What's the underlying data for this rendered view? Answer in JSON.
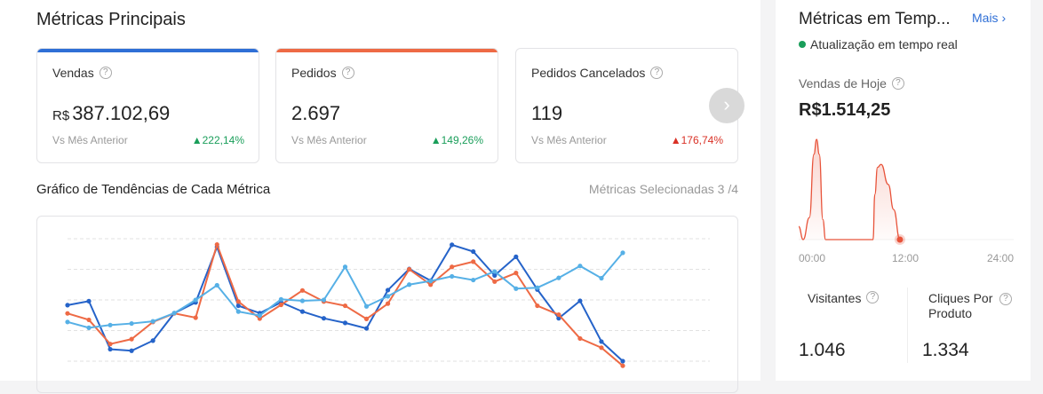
{
  "main": {
    "title": "Métricas Principais",
    "cards": [
      {
        "label": "Vendas",
        "currency": "R$",
        "value": "387.102,69",
        "compare": "Vs Mês Anterior",
        "change": "222,14%",
        "direction": "up",
        "accent": "#2f6fd6"
      },
      {
        "label": "Pedidos",
        "currency": "",
        "value": "2.697",
        "compare": "Vs Mês Anterior",
        "change": "149,26%",
        "direction": "up",
        "accent": "#ee6a45"
      },
      {
        "label": "Pedidos Cancelados",
        "currency": "",
        "value": "119",
        "compare": "Vs Mês Anterior",
        "change": "176,74%",
        "direction": "down",
        "accent": ""
      }
    ],
    "trend_title": "Gráfico de Tendências de Cada Métrica",
    "selected_metrics": "Métricas Selecionadas 3 /4"
  },
  "chart_data": [
    {
      "type": "line",
      "ylim": [
        0,
        4
      ],
      "grid": true,
      "series": [
        {
          "color": "#2563c9",
          "values": [
            1.83,
            1.96,
            0.39,
            0.34,
            0.67,
            1.57,
            1.92,
            3.73,
            1.81,
            1.57,
            1.92,
            1.62,
            1.4,
            1.25,
            1.07,
            2.32,
            3.01,
            2.63,
            3.8,
            3.58,
            2.8,
            3.41,
            2.34,
            1.4,
            1.97,
            0.64,
            0.0
          ]
        },
        {
          "color": "#ee6a45",
          "values": [
            1.56,
            1.35,
            0.56,
            0.72,
            1.28,
            1.56,
            1.42,
            3.81,
            1.95,
            1.39,
            1.84,
            2.31,
            1.95,
            1.81,
            1.38,
            1.88,
            3.0,
            2.5,
            3.08,
            3.25,
            2.6,
            2.88,
            1.81,
            1.52,
            0.74,
            0.44,
            -0.15
          ]
        },
        {
          "color": "#56b0e6",
          "values": [
            1.28,
            1.09,
            1.18,
            1.23,
            1.3,
            1.57,
            2.0,
            2.48,
            1.62,
            1.49,
            2.02,
            1.97,
            2.0,
            3.08,
            1.79,
            2.12,
            2.5,
            2.62,
            2.77,
            2.65,
            2.93,
            2.37,
            2.4,
            2.72,
            3.11,
            2.71,
            3.54
          ]
        }
      ]
    },
    {
      "type": "area",
      "x_ticks": [
        "00:00",
        "12:00",
        "24:00"
      ],
      "xlim": [
        0,
        24
      ],
      "color": "#e8533a",
      "points": [
        [
          0,
          13
        ],
        [
          0.5,
          0
        ],
        [
          1.2,
          22
        ],
        [
          1.7,
          85
        ],
        [
          2.0,
          100
        ],
        [
          2.3,
          85
        ],
        [
          2.7,
          20
        ],
        [
          3,
          0
        ],
        [
          8.3,
          0
        ],
        [
          8.5,
          45
        ],
        [
          8.8,
          72
        ],
        [
          9.2,
          75
        ],
        [
          10,
          55
        ],
        [
          10.6,
          30
        ],
        [
          11.3,
          0
        ]
      ]
    }
  ],
  "realtime": {
    "title": "Métricas em Temp...",
    "more": "Mais",
    "status": "Atualização em tempo real",
    "status_color": "#1a9e5a",
    "today_label": "Vendas de Hoje",
    "today_value": "R$1.514,25",
    "visitors_label": "Visitantes",
    "visitors_value": "1.046",
    "clicks_label": "Cliques Por Produto",
    "clicks_value": "1.334"
  }
}
